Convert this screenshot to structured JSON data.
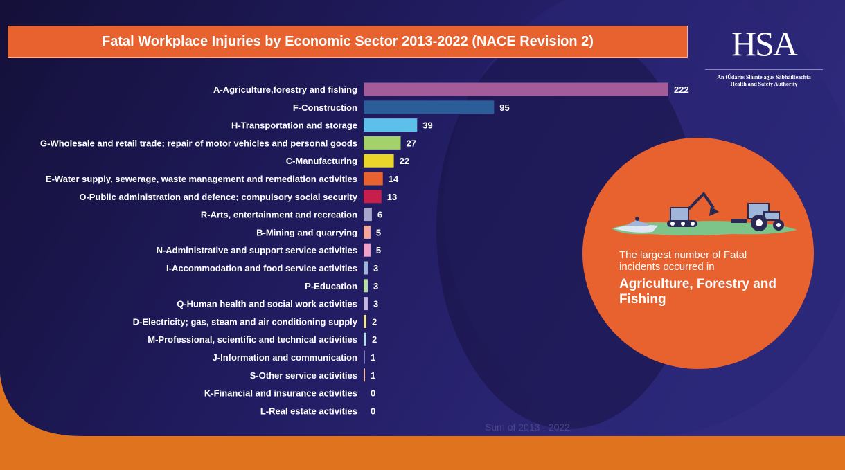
{
  "page": {
    "title": "Fatal Workplace Injuries by Economic Sector 2013-2022 (NACE Revision 2)",
    "logo": {
      "main": "HSA",
      "sub_line1": "An tÚdarás Sláinte agus Sábháilteachta",
      "sub_line2": "Health and Safety Authority"
    },
    "callout": {
      "line1": "The largest number of Fatal incidents occurred in",
      "line2": "Agriculture, Forestry and Fishing"
    },
    "footer_label": "Sum of 2013 - 2022",
    "colors": {
      "background_dark": "#15103f",
      "background_mid": "#2c2877",
      "orange": "#e8622f",
      "bottom_strip": "#e0731d"
    },
    "icons": [
      "boat-icon",
      "excavator-icon",
      "tractor-icon"
    ]
  },
  "chart_data": {
    "type": "bar",
    "orientation": "horizontal",
    "title": "Fatal Workplace Injuries by Economic Sector 2013-2022 (NACE Revision 2)",
    "xlabel": "Sum of 2013 - 2022",
    "categories": [
      "A-Agriculture,forestry and fishing",
      "F-Construction",
      "H-Transportation and storage",
      "G-Wholesale and retail trade; repair of motor vehicles and personal goods",
      "C-Manufacturing",
      "E-Water supply, sewerage, waste management and remediation activities",
      "O-Public administration and defence; compulsory social security",
      "R-Arts, entertainment and recreation",
      "B-Mining and quarrying",
      "N-Administrative and support service activities",
      "I-Accommodation and food service activities",
      "P-Education",
      "Q-Human health and social work activities",
      "D-Electricity; gas, steam and air conditioning supply",
      "M-Professional, scientific and technical activities",
      "J-Information and communication",
      "S-Other service activities",
      "K-Financial and insurance activities",
      "L-Real estate activities"
    ],
    "values": [
      222,
      95,
      39,
      27,
      22,
      14,
      13,
      6,
      5,
      5,
      3,
      3,
      3,
      2,
      2,
      1,
      1,
      0,
      0
    ],
    "colors": [
      "#a35b99",
      "#2b5d99",
      "#5cc0ea",
      "#a3d26b",
      "#ead52b",
      "#e8622f",
      "#c71e4c",
      "#a7a5cc",
      "#f5a99a",
      "#f2a2c9",
      "#9fb6da",
      "#b7e0a1",
      "#c6b7e0",
      "#f4e59d",
      "#b6dcf2",
      "#7b78c4",
      "#f6b7a2",
      "#888888",
      "#888888"
    ],
    "xlim": [
      0,
      222
    ],
    "grid": false,
    "legend": "none"
  }
}
